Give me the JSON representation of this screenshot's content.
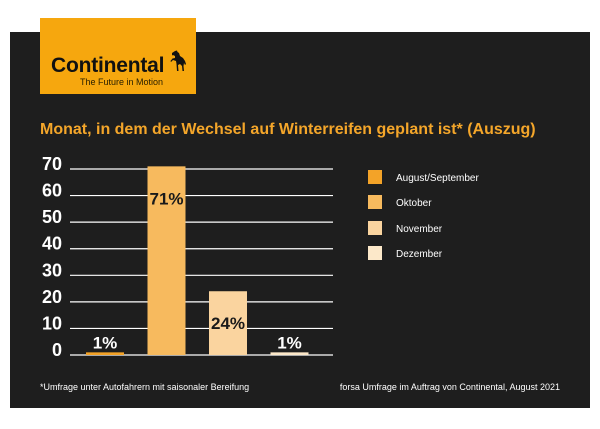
{
  "logo": {
    "brand": "Continental",
    "tagline": "The Future in Motion",
    "icon": "horse-icon"
  },
  "theme": {
    "panel": "#1E1E1E",
    "accent": "#F4A62A",
    "logo_background": "#F6A70E"
  },
  "chart_data": {
    "type": "bar",
    "title": "Monat, in dem der Wechsel auf Winterreifen geplant ist* (Auszug)",
    "categories": [
      "August/September",
      "Oktober",
      "November",
      "Dezember"
    ],
    "values": [
      1,
      71,
      24,
      1
    ],
    "value_labels": [
      "1%",
      "71%",
      "24%",
      "1%"
    ],
    "colors": [
      "#F3A328",
      "#F7BA5E",
      "#FAD49F",
      "#FCE8C9"
    ],
    "yticks": [
      0,
      10,
      20,
      30,
      40,
      50,
      60,
      70
    ],
    "ylim": [
      0,
      70
    ],
    "grid": true,
    "legend": "right"
  },
  "footnote": "*Umfrage unter Autofahrern mit saisonaler Bereifung",
  "source": "forsa Umfrage im Auftrag von Continental, August 2021"
}
